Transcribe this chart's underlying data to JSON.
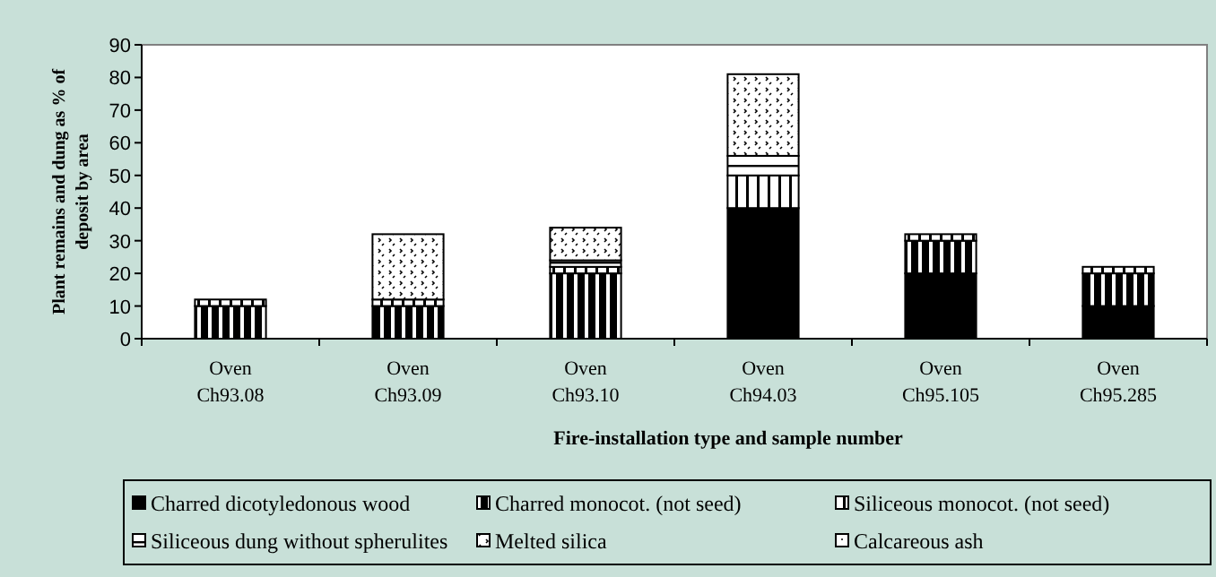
{
  "chart_data": {
    "type": "bar",
    "stacked": true,
    "xlabel": "Fire-installation type and sample number",
    "ylabel": "Plant remains and dung as % of deposit by area",
    "categories": [
      "Oven Ch93.08",
      "Oven Ch93.09",
      "Oven Ch93.10",
      "Oven Ch94.03",
      "Oven Ch95.105",
      "Oven Ch95.285"
    ],
    "ylim": [
      0,
      90
    ],
    "yticks": [
      0,
      10,
      20,
      30,
      40,
      50,
      60,
      70,
      80,
      90
    ],
    "grid": false,
    "legend": "bottom",
    "series": [
      {
        "name": "Charred dicotyledonous wood",
        "color": "#000000",
        "values": [
          0,
          0,
          0,
          40,
          20,
          10
        ]
      },
      {
        "name": "Charred monocot. (not seed)",
        "color": "#000000",
        "values": [
          10,
          10,
          20,
          0,
          10,
          10
        ]
      },
      {
        "name": "Siliceous monocot. (not seed)",
        "color": "#000000",
        "values": [
          2,
          2,
          2,
          10,
          2,
          2
        ]
      },
      {
        "name": "Siliceous dung without spherulites",
        "color": "#000000",
        "values": [
          0,
          0,
          2,
          6,
          0,
          0
        ]
      },
      {
        "name": "Melted silica",
        "color": "#000000",
        "values": [
          0,
          20,
          10,
          25,
          0,
          0
        ]
      },
      {
        "name": "Calcareous ash",
        "color": "#000000",
        "values": [
          0,
          0,
          0,
          0,
          0,
          0
        ]
      }
    ]
  }
}
